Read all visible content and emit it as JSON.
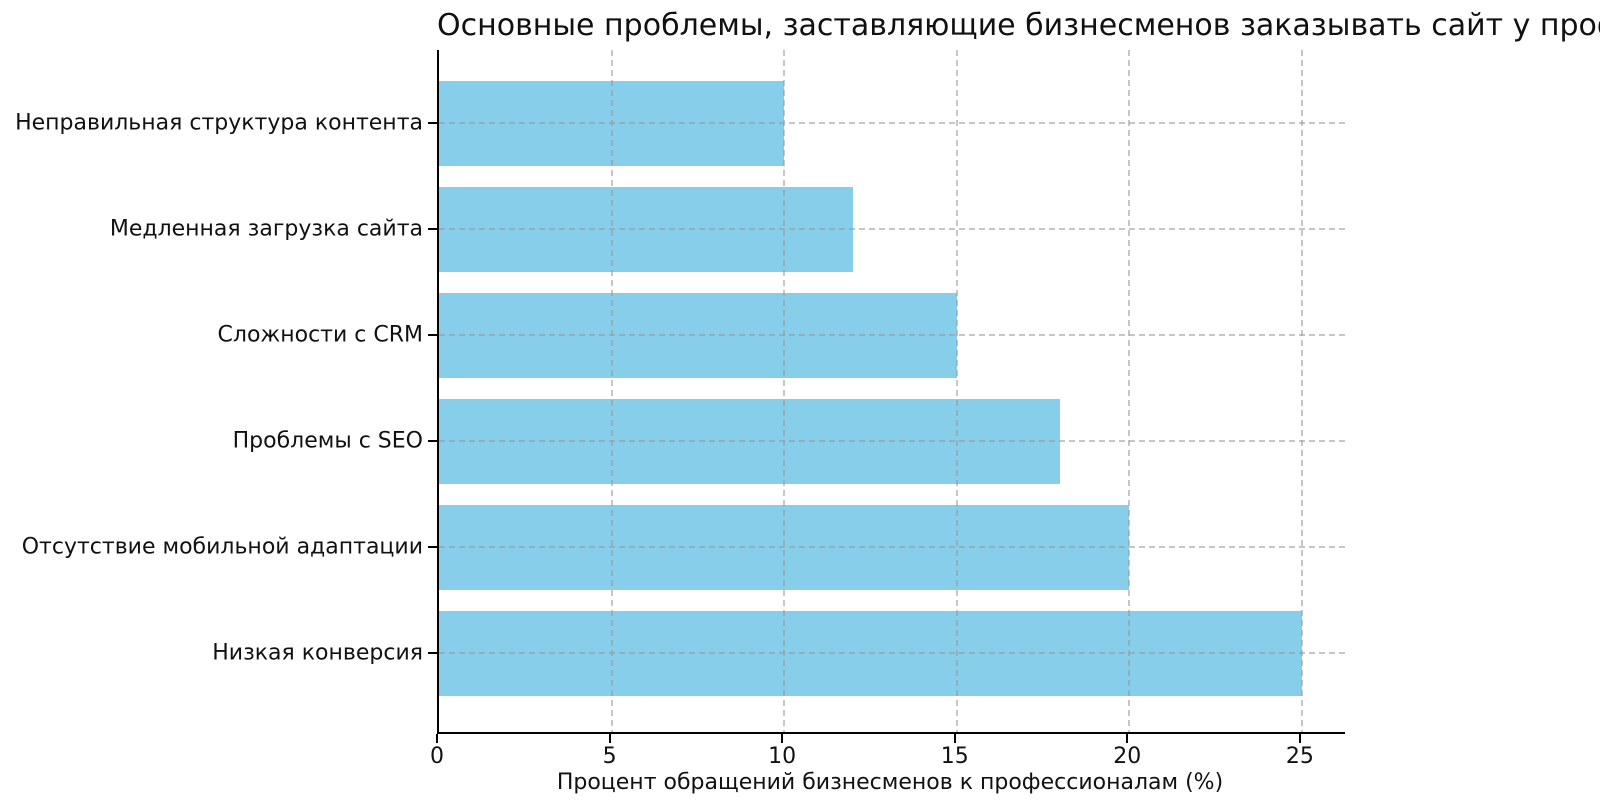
{
  "chart_data": {
    "type": "bar",
    "orientation": "horizontal",
    "title": "Основные проблемы, заставляющие бизнесменов заказывать сайт у профессионалов",
    "xlabel": "Процент обращений бизнесменов к профессионалам (%)",
    "ylabel": "",
    "categories": [
      "Неправильная структура контента",
      "Медленная загрузка сайта",
      "Сложности с CRM",
      "Проблемы с SEO",
      "Отсутствие мобильной адаптации",
      "Низкая конверсия"
    ],
    "values": [
      10,
      12,
      15,
      18,
      20,
      25
    ],
    "xticks": [
      0,
      5,
      10,
      15,
      20,
      25
    ],
    "xlim": [
      0,
      26.25
    ],
    "grid": true,
    "grid_style": "dashed",
    "legend_position": "none",
    "colors": {
      "bar": "#87CEEB",
      "grid": "#b0b0b0",
      "axis": "#000000",
      "text": "#111111",
      "background": "#ffffff"
    }
  }
}
